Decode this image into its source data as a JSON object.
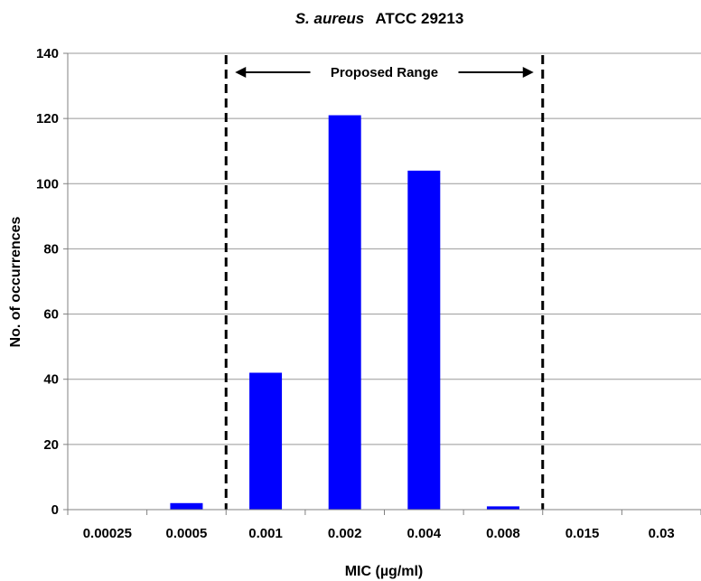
{
  "chart_data": {
    "type": "bar",
    "title_italic": "S. aureus",
    "title_rest": "ATCC 29213",
    "xlabel": "MIC (µg/ml)",
    "ylabel": "No. of occurrences",
    "categories": [
      "0.00025",
      "0.0005",
      "0.001",
      "0.002",
      "0.004",
      "0.008",
      "0.015",
      "0.03"
    ],
    "values": [
      0,
      2,
      42,
      121,
      104,
      1,
      0,
      0
    ],
    "ylim": [
      0,
      140
    ],
    "yticks": [
      0,
      20,
      40,
      60,
      80,
      100,
      120,
      140
    ],
    "grid": true,
    "bar_color": "#0000ff",
    "annotation": {
      "label": "Proposed Range",
      "from_category": "0.001",
      "to_category": "0.008"
    }
  }
}
